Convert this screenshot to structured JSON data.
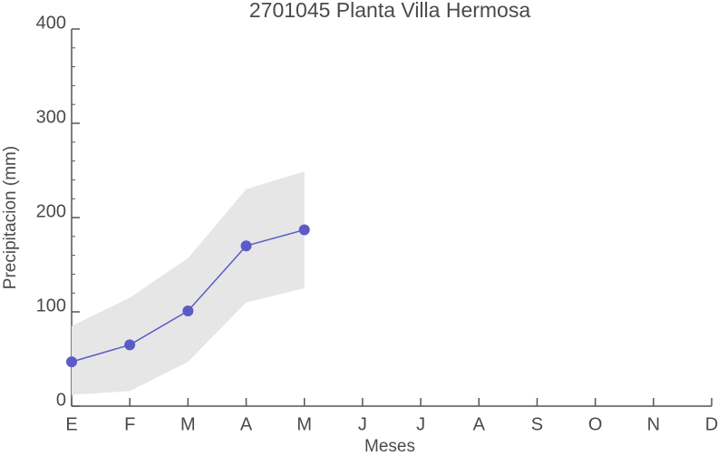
{
  "chart_data": {
    "type": "line",
    "title": "2701045 Planta Villa Hermosa",
    "xlabel": "Meses",
    "ylabel": "Precipitacion (mm)",
    "categories": [
      "E",
      "F",
      "M",
      "A",
      "M",
      "J",
      "J",
      "A",
      "S",
      "O",
      "N",
      "D"
    ],
    "series": [
      {
        "color": "#5b5bc8",
        "values": [
          47,
          65,
          101,
          170,
          187,
          null,
          null,
          null,
          null,
          null,
          null,
          null
        ]
      }
    ],
    "band": {
      "color": "#e6e6e6",
      "lower": [
        12,
        16,
        47,
        110,
        125,
        null,
        null,
        null,
        null,
        null,
        null,
        null
      ],
      "upper": [
        85,
        115,
        157,
        230,
        249,
        null,
        null,
        null,
        null,
        null,
        null,
        null
      ]
    },
    "ylim": [
      0,
      400
    ],
    "yticks": [
      0,
      100,
      200,
      300,
      400
    ],
    "yminor": 20
  }
}
